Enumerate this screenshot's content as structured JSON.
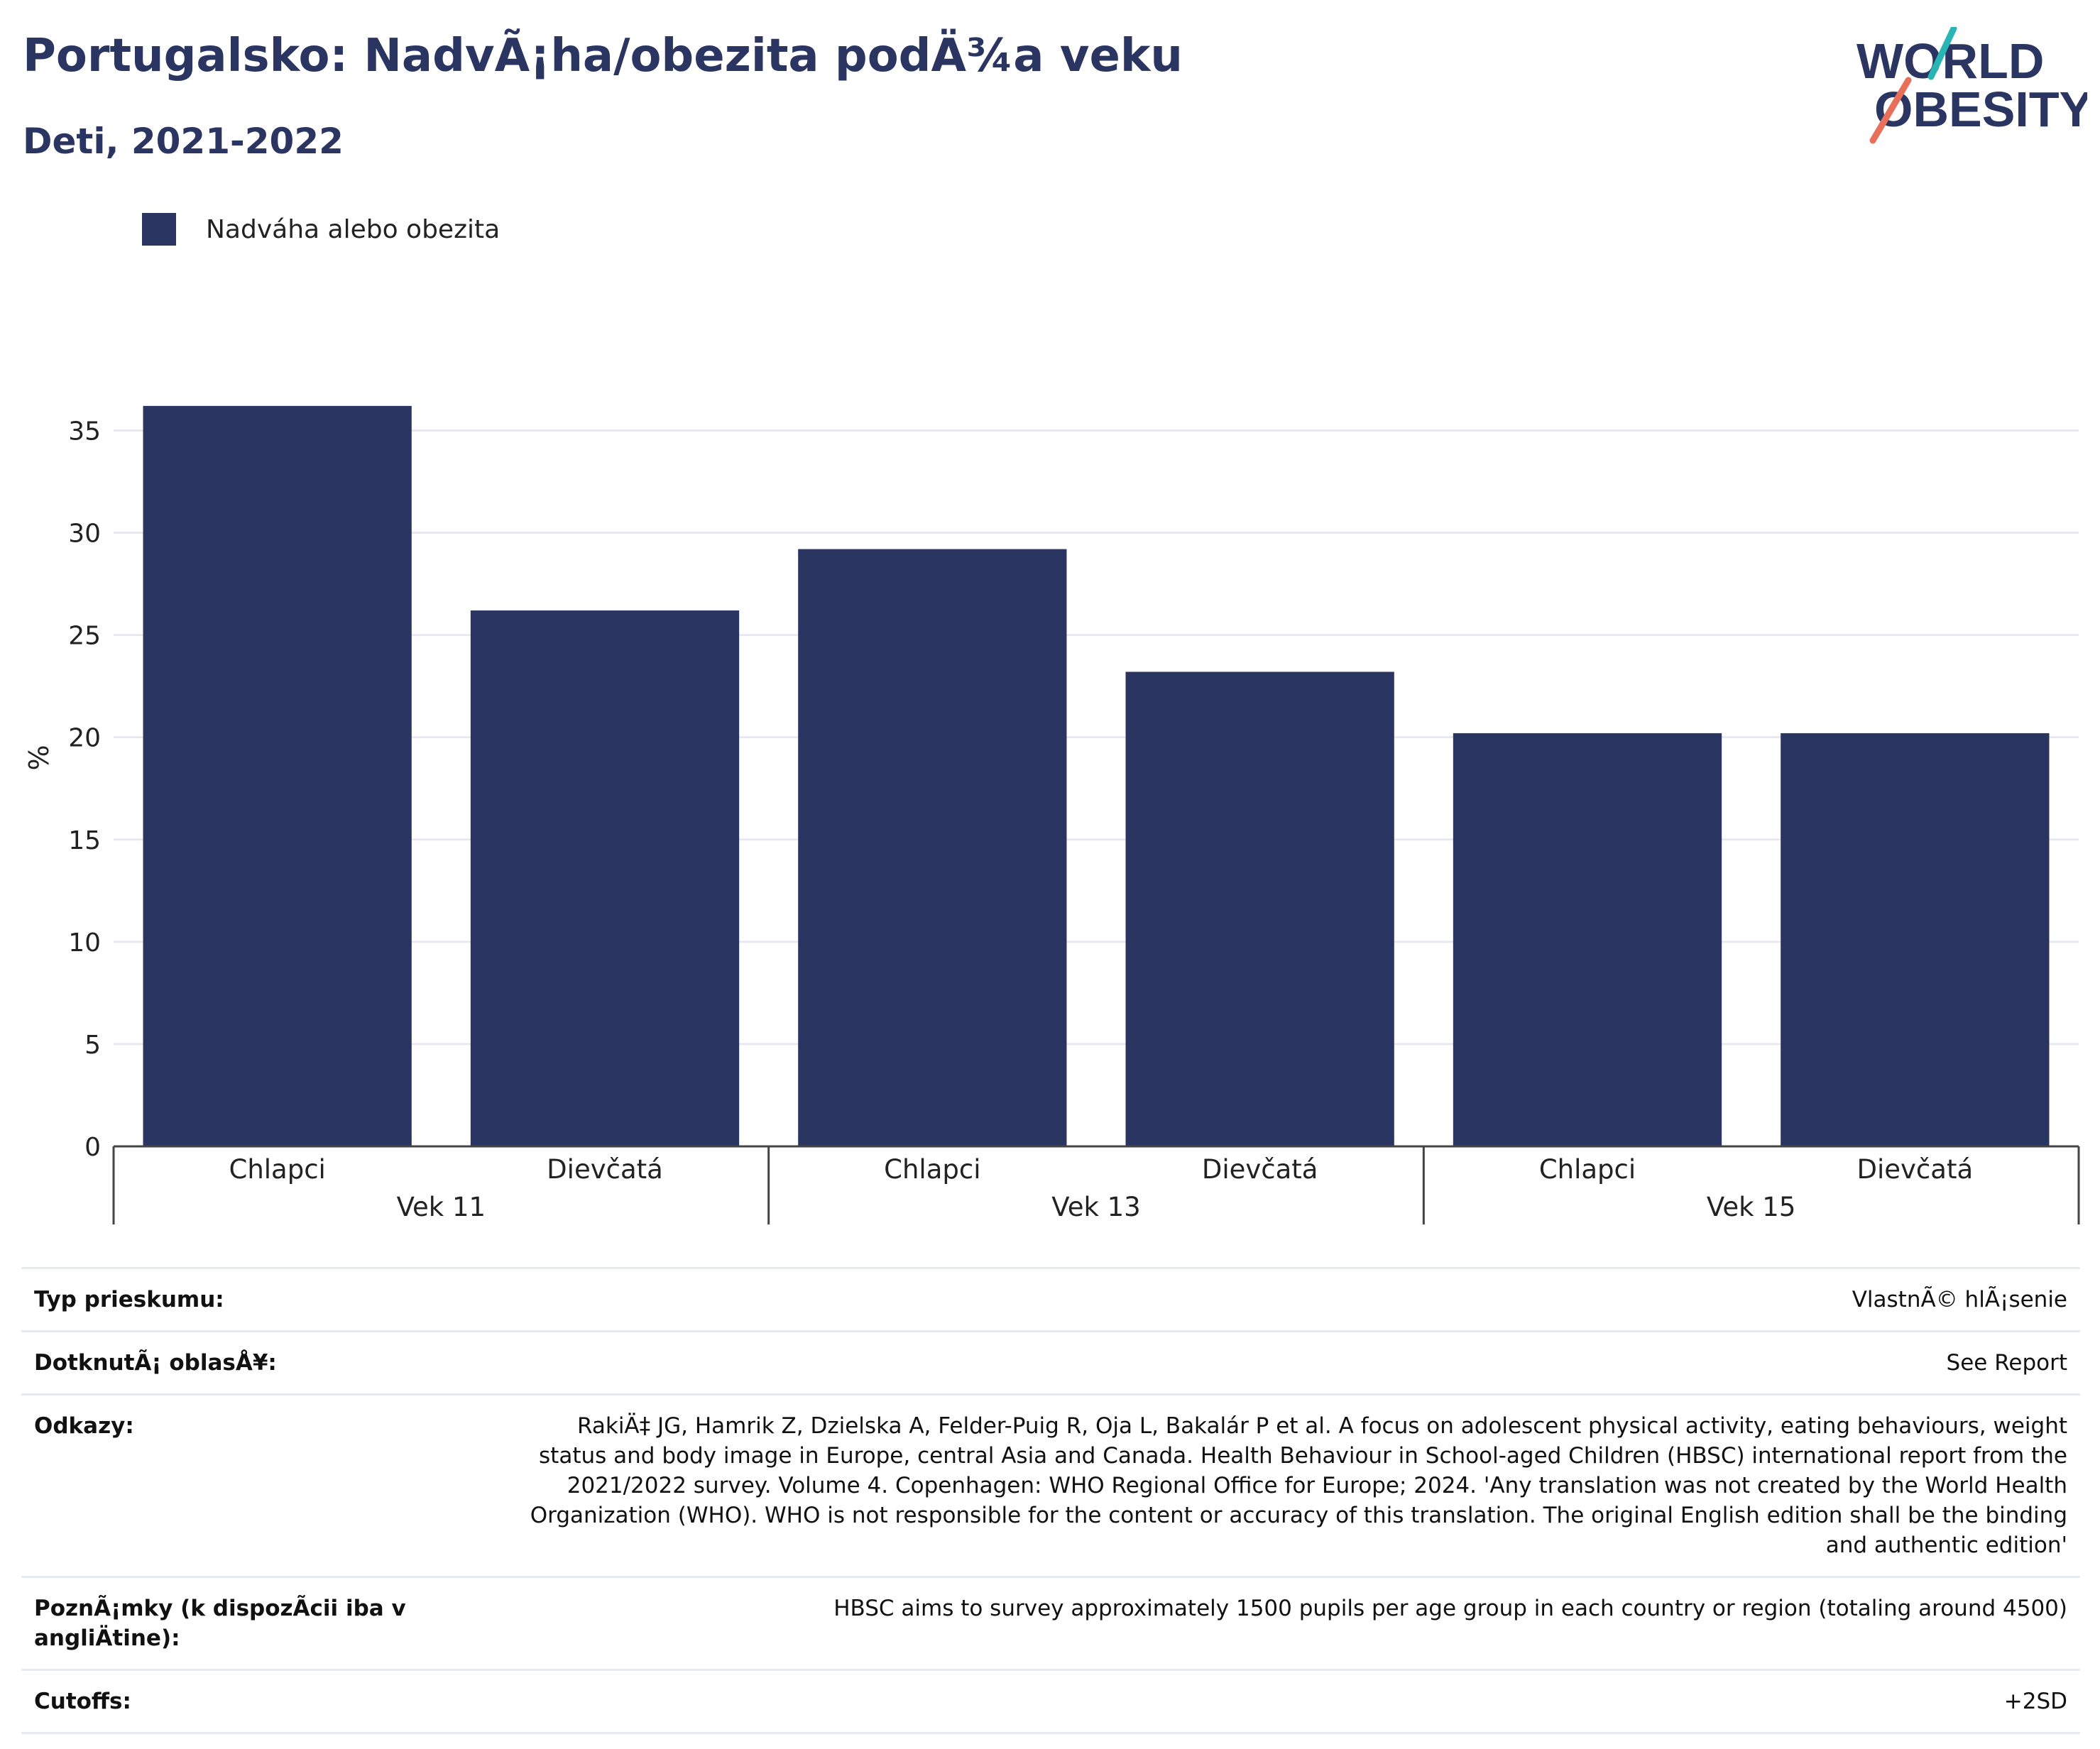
{
  "header": {
    "title": "Portugalsko: NadvÃ¡ha/obezita podÄ¾a veku",
    "subtitle": "Deti, 2021-2022"
  },
  "logo": {
    "line1": "WORLD",
    "line2": "OBESITY"
  },
  "colors": {
    "bar": "#2b3562",
    "text_dark": "#2b3562",
    "grid": "#e6e9ef",
    "logo_teal": "#2ab5b5",
    "logo_coral": "#e8705a"
  },
  "chart_data": {
    "type": "bar",
    "title": "Portugalsko: NadvÃ¡ha/obezita podÄ¾a veku",
    "subtitle": "Deti, 2021-2022",
    "ylabel": "%",
    "ylim": [
      0,
      38
    ],
    "yticks": [
      0,
      5,
      10,
      15,
      20,
      25,
      30,
      35
    ],
    "grid": true,
    "legend_position": "top-left",
    "groups": [
      "Vek 11",
      "Vek 13",
      "Vek 15"
    ],
    "categories": [
      "Chlapci",
      "Dievčatá",
      "Chlapci",
      "Dievčatá",
      "Chlapci",
      "Dievčatá"
    ],
    "series": [
      {
        "name": "Nadváha alebo obezita",
        "values": [
          36.2,
          26.2,
          29.2,
          23.2,
          20.2,
          20.2
        ]
      }
    ]
  },
  "info": [
    {
      "label": "Typ prieskumu:",
      "value": "VlastnÃ© hlÃ¡senie"
    },
    {
      "label": "DotknutÃ¡ oblasÅ¥:",
      "value": "See Report"
    },
    {
      "label": "Odkazy:",
      "value": "RakiÄ‡ JG, Hamrik Z, Dzielska A, Felder-Puig R, Oja L, Bakalár P et al. A focus on adolescent physical activity, eating behaviours, weight status and body image in Europe, central Asia and Canada. Health Behaviour in School-aged Children (HBSC) international report from the 2021/2022 survey. Volume 4. Copenhagen: WHO Regional Office for Europe; 2024. 'Any translation was not created by the World Health Organization (WHO). WHO is not responsible for the content or accuracy of this translation. The original English edition shall be the binding and authentic edition'"
    },
    {
      "label": "PoznÃ¡mky (k dispozÃ­cii iba v angliÄtine):",
      "value": "HBSC aims to survey approximately 1500 pupils per age group in each country or region (totaling around 4500)"
    },
    {
      "label": "Cutoffs:",
      "value": "+2SD"
    }
  ]
}
